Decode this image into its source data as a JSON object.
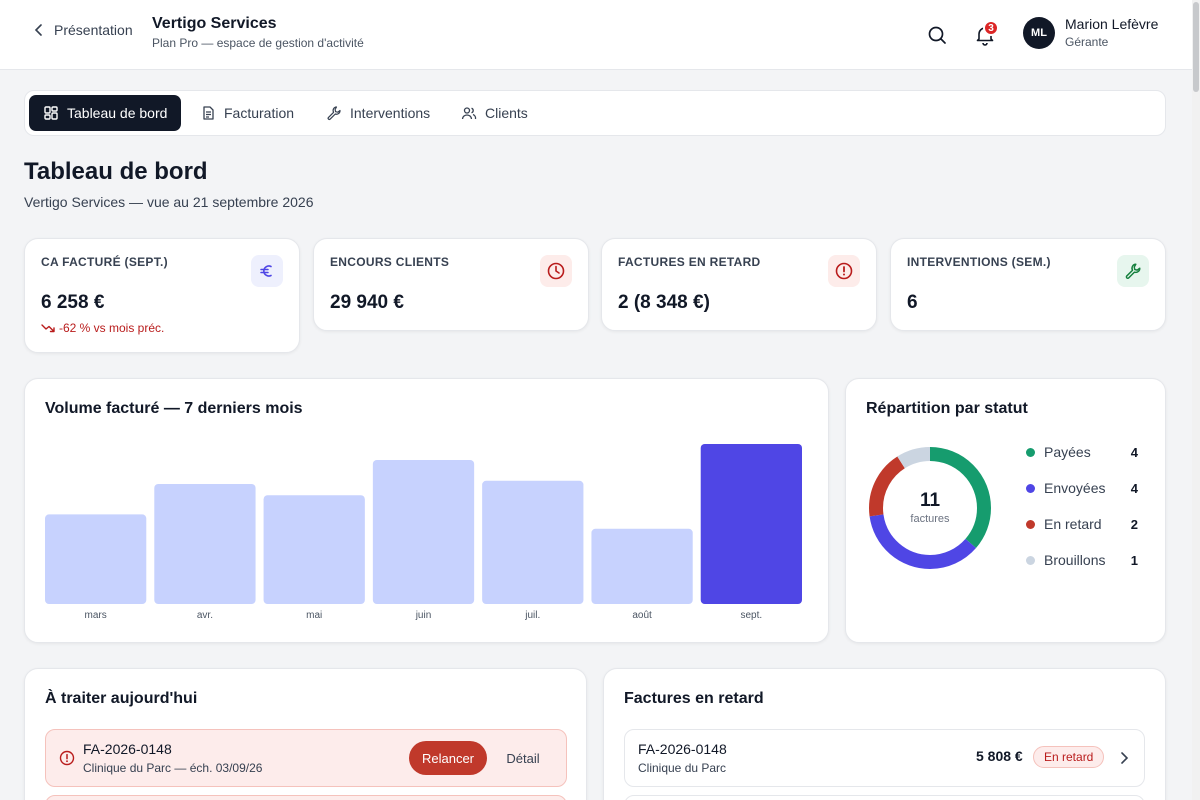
{
  "header": {
    "back_label": "Présentation",
    "company": "Vertigo Services",
    "plan": "Plan Pro — espace de gestion d'activité",
    "notification_count": "3",
    "user_initials": "ML",
    "user_name": "Marion Lefèvre",
    "user_role": "Gérante"
  },
  "tabs": [
    {
      "label": "Tableau de bord",
      "icon": "dashboard-icon",
      "active": true
    },
    {
      "label": "Facturation",
      "icon": "document-icon",
      "active": false
    },
    {
      "label": "Interventions",
      "icon": "wrench-icon",
      "active": false
    },
    {
      "label": "Clients",
      "icon": "users-icon",
      "active": false
    }
  ],
  "page": {
    "title": "Tableau de bord",
    "subtitle": "Vertigo Services — vue au 21 septembre 2026"
  },
  "kpis": [
    {
      "label": "CA FACTURÉ (SEPT.)",
      "value": "6 258 €",
      "trend": "-62 % vs mois préc.",
      "icon": "euro-icon",
      "icon_color": "#4f46e5",
      "icon_bg": "#eef0fd"
    },
    {
      "label": "ENCOURS CLIENTS",
      "value": "29 940 €",
      "icon": "clock-icon",
      "icon_color": "#b91c1c",
      "icon_bg": "#fdecea"
    },
    {
      "label": "FACTURES EN RETARD",
      "value": "2 (8 348 €)",
      "icon": "alert-icon",
      "icon_color": "#b91c1c",
      "icon_bg": "#fdecea"
    },
    {
      "label": "INTERVENTIONS (SEM.)",
      "value": "6",
      "icon": "wrench-icon",
      "icon_color": "#15803d",
      "icon_bg": "#e7f6ee"
    }
  ],
  "volume_chart": {
    "title": "Volume facturé — 7 derniers mois"
  },
  "chart_data": [
    {
      "type": "bar",
      "title": "Volume facturé — 7 derniers mois",
      "categories": [
        "mars",
        "avr.",
        "mai",
        "juin",
        "juil.",
        "août",
        "sept."
      ],
      "values": [
        56,
        75,
        68,
        90,
        77,
        47,
        100
      ],
      "highlight_index": 6,
      "colors": {
        "default": "#c7d2fe",
        "highlight": "#4f46e5"
      },
      "grid": false
    },
    {
      "type": "pie",
      "title": "Répartition par statut",
      "total": "11",
      "total_label": "factures",
      "slices": [
        {
          "label": "Payées",
          "value": 4,
          "color": "#169c6e"
        },
        {
          "label": "Envoyées",
          "value": 4,
          "color": "#4f46e5"
        },
        {
          "label": "En retard",
          "value": 2,
          "color": "#c0392b"
        },
        {
          "label": "Brouillons",
          "value": 1,
          "color": "#cbd5e1"
        }
      ]
    }
  ],
  "status_card": {
    "title": "Répartition par statut"
  },
  "todo": {
    "title": "À traiter aujourd'hui",
    "items": [
      {
        "ref": "FA-2026-0148",
        "detail": "Clinique du Parc — éch. 03/09/26",
        "primary_action": "Relancer",
        "secondary_action": "Détail"
      }
    ]
  },
  "late": {
    "title": "Factures en retard",
    "items": [
      {
        "ref": "FA-2026-0148",
        "client": "Clinique du Parc",
        "amount": "5 808 €",
        "status": "En retard"
      }
    ]
  }
}
